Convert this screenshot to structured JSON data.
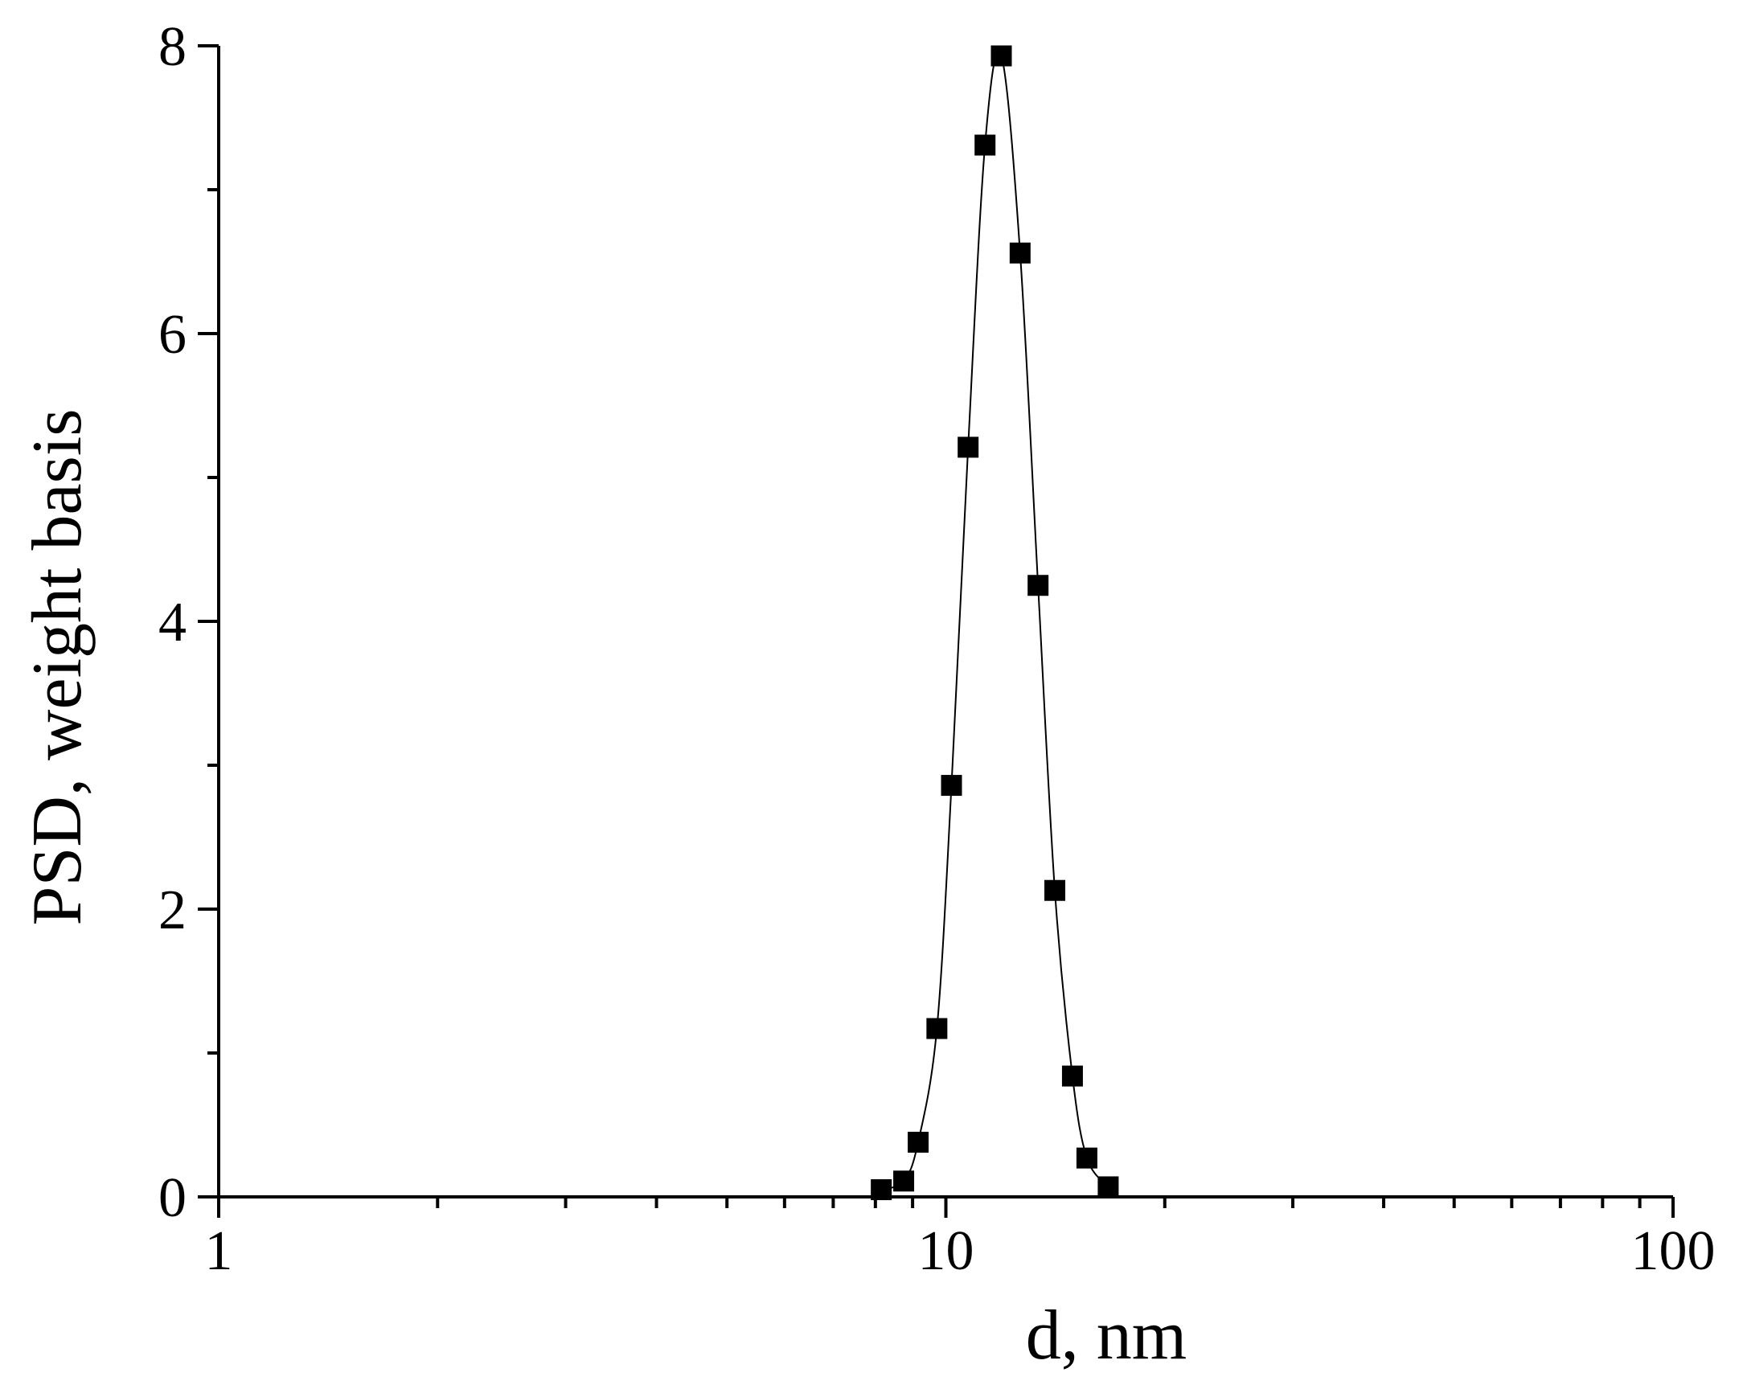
{
  "chart_data": {
    "type": "scatter",
    "x_label": "d, nm",
    "y_label": "PSD, weight basis",
    "x_scale": "log",
    "xlim": [
      1,
      100
    ],
    "xticks": [
      1,
      10,
      100
    ],
    "xminorticks": [
      2,
      3,
      4,
      5,
      6,
      7,
      8,
      9,
      20,
      30,
      40,
      50,
      60,
      70,
      80,
      90
    ],
    "ylim": [
      0,
      8
    ],
    "yticks": [
      0,
      2,
      4,
      6,
      8
    ],
    "yminorticks": [
      1,
      3,
      5,
      7
    ],
    "grid": false,
    "series": [
      {
        "color": "#000000",
        "marker": "square",
        "line": true,
        "x": [
          8.15,
          8.75,
          9.16,
          9.72,
          10.18,
          10.73,
          11.32,
          11.92,
          12.65,
          13.39,
          14.12,
          14.93,
          15.63,
          16.72
        ],
        "values": [
          0.05,
          0.11,
          0.38,
          1.17,
          2.86,
          5.21,
          7.31,
          7.93,
          6.56,
          4.25,
          2.13,
          0.84,
          0.27,
          0.07
        ]
      }
    ]
  }
}
